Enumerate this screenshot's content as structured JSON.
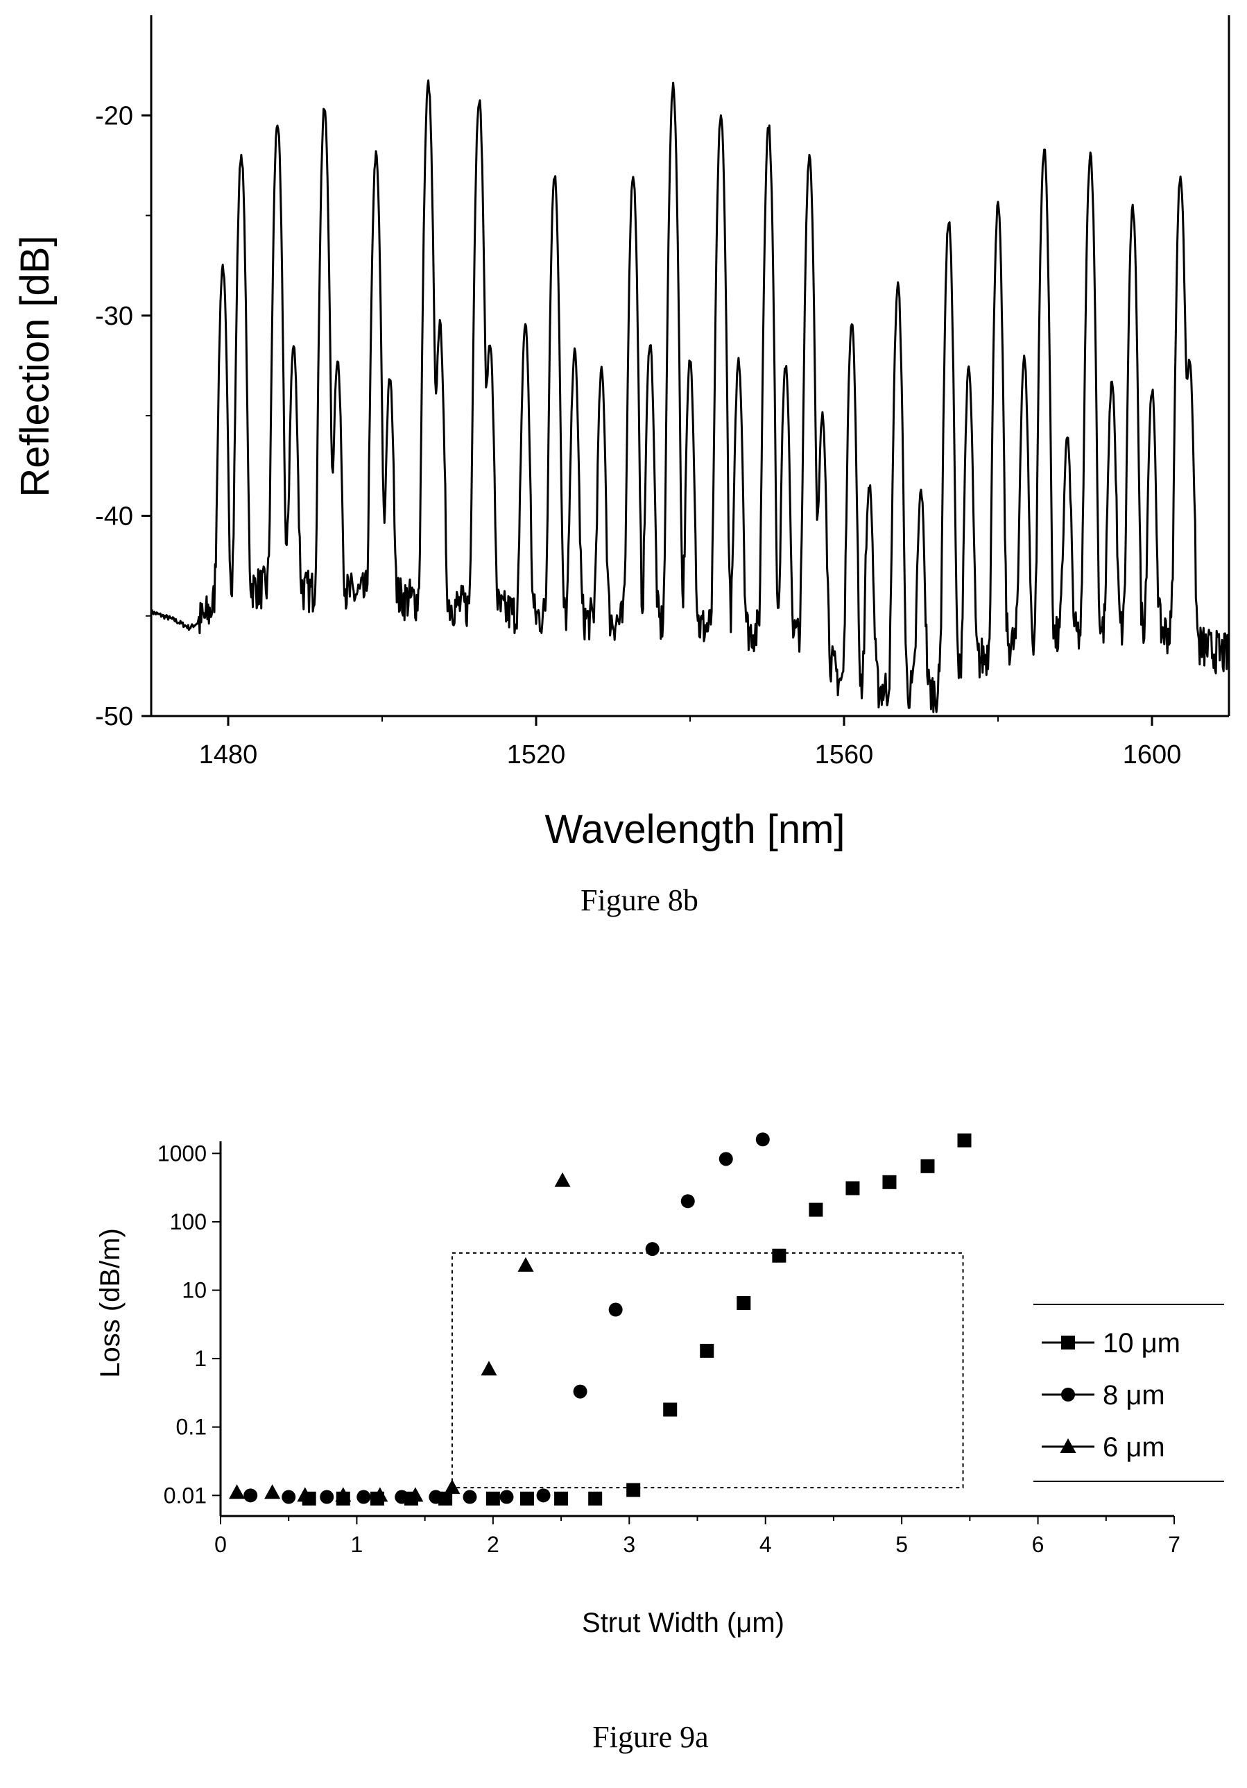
{
  "chart_data": [
    {
      "type": "line",
      "caption": "Figure 8b",
      "xlabel": "Wavelength [nm]",
      "ylabel": "Reflection [dB]",
      "xlim": [
        1470,
        1610
      ],
      "ylim": [
        -50,
        -15
      ],
      "xticks": [
        1480,
        1520,
        1560,
        1600
      ],
      "yticks": [
        -50,
        -40,
        -30,
        -20
      ],
      "grid": false,
      "baseline": [
        [
          1470,
          -44.8
        ],
        [
          1473,
          -45.2
        ],
        [
          1475,
          -45.6
        ],
        [
          1477,
          -45.1
        ],
        [
          1480,
          -43.5
        ],
        [
          1500,
          -44.0
        ],
        [
          1520,
          -45.0
        ],
        [
          1540,
          -45.5
        ],
        [
          1556,
          -46.0
        ],
        [
          1560,
          -48.5
        ],
        [
          1572,
          -48.8
        ],
        [
          1580,
          -46.5
        ],
        [
          1600,
          -45.5
        ],
        [
          1606,
          -46.5
        ],
        [
          1610,
          -47.0
        ]
      ],
      "peaks": [
        {
          "x": 1479.3,
          "y": -27.6
        },
        {
          "x": 1481.7,
          "y": -22.0
        },
        {
          "x": 1486.4,
          "y": -20.4
        },
        {
          "x": 1488.5,
          "y": -31.8
        },
        {
          "x": 1492.5,
          "y": -19.7
        },
        {
          "x": 1494.2,
          "y": -32.5
        },
        {
          "x": 1499.2,
          "y": -22.0
        },
        {
          "x": 1501.0,
          "y": -33.5
        },
        {
          "x": 1506.0,
          "y": -18.4
        },
        {
          "x": 1507.5,
          "y": -30.6
        },
        {
          "x": 1512.6,
          "y": -19.2
        },
        {
          "x": 1514.0,
          "y": -31.5
        },
        {
          "x": 1518.6,
          "y": -30.6
        },
        {
          "x": 1522.4,
          "y": -23.0
        },
        {
          "x": 1525.0,
          "y": -32.0
        },
        {
          "x": 1528.5,
          "y": -33.0
        },
        {
          "x": 1532.6,
          "y": -23.0
        },
        {
          "x": 1534.8,
          "y": -31.5
        },
        {
          "x": 1537.8,
          "y": -18.6
        },
        {
          "x": 1540.0,
          "y": -32.4
        },
        {
          "x": 1544.0,
          "y": -20.0
        },
        {
          "x": 1546.3,
          "y": -32.4
        },
        {
          "x": 1550.2,
          "y": -20.5
        },
        {
          "x": 1552.4,
          "y": -32.7
        },
        {
          "x": 1555.5,
          "y": -22.0
        },
        {
          "x": 1557.2,
          "y": -35.3
        },
        {
          "x": 1561.0,
          "y": -30.3
        },
        {
          "x": 1563.3,
          "y": -38.9
        },
        {
          "x": 1567.0,
          "y": -28.5
        },
        {
          "x": 1570.0,
          "y": -39.2
        },
        {
          "x": 1573.6,
          "y": -25.3
        },
        {
          "x": 1576.2,
          "y": -32.8
        },
        {
          "x": 1580.0,
          "y": -24.5
        },
        {
          "x": 1583.4,
          "y": -32.3
        },
        {
          "x": 1586.0,
          "y": -21.7
        },
        {
          "x": 1589.0,
          "y": -36.5
        },
        {
          "x": 1592.0,
          "y": -21.9
        },
        {
          "x": 1594.8,
          "y": -33.5
        },
        {
          "x": 1597.5,
          "y": -24.7
        },
        {
          "x": 1600.0,
          "y": -34.0
        },
        {
          "x": 1603.7,
          "y": -23.0
        },
        {
          "x": 1604.9,
          "y": -32.4
        }
      ]
    },
    {
      "type": "scatter",
      "caption": "Figure 9a",
      "xlabel": "Strut Width (μm)",
      "ylabel": "Loss (dB/m)",
      "xlim": [
        0,
        7
      ],
      "ylim_log": [
        0.005,
        1500
      ],
      "y_scale": "log",
      "xticks": [
        0,
        1,
        2,
        3,
        4,
        5,
        6,
        7
      ],
      "yticks": [
        0.01,
        0.1,
        1,
        10,
        100,
        1000
      ],
      "ytick_labels": [
        "0.01",
        "0.1",
        "1",
        "10",
        "100",
        "1000"
      ],
      "legend_position": "right",
      "grid": false,
      "highlight_box": {
        "x": [
          1.7,
          5.45
        ],
        "y": [
          0.013,
          35
        ]
      },
      "series": [
        {
          "name": "10 μm",
          "marker": "square",
          "x": [
            0.65,
            0.9,
            1.15,
            1.4,
            1.65,
            2.0,
            2.25,
            2.5,
            2.75,
            3.03,
            3.3,
            3.57,
            3.84,
            4.1,
            4.37,
            4.64,
            4.91,
            5.19,
            5.46
          ],
          "y": [
            0.009,
            0.009,
            0.009,
            0.009,
            0.009,
            0.009,
            0.009,
            0.009,
            0.009,
            0.012,
            0.18,
            1.3,
            6.5,
            32,
            150,
            310,
            380,
            650,
            1550
          ]
        },
        {
          "name": "8 μm",
          "marker": "circle",
          "x": [
            0.22,
            0.5,
            0.78,
            1.05,
            1.33,
            1.58,
            1.83,
            2.1,
            2.37,
            2.64,
            2.9,
            3.17,
            3.43,
            3.71,
            3.98
          ],
          "y": [
            0.01,
            0.0095,
            0.0095,
            0.0095,
            0.0095,
            0.0095,
            0.0095,
            0.0095,
            0.01,
            0.33,
            5.2,
            40,
            200,
            830,
            1600
          ]
        },
        {
          "name": "6 μm",
          "marker": "triangle",
          "x": [
            0.12,
            0.38,
            0.62,
            0.9,
            1.17,
            1.43,
            1.7,
            1.97,
            2.24,
            2.51
          ],
          "y": [
            0.011,
            0.011,
            0.01,
            0.01,
            0.01,
            0.01,
            0.013,
            0.7,
            23,
            400
          ]
        }
      ]
    }
  ]
}
